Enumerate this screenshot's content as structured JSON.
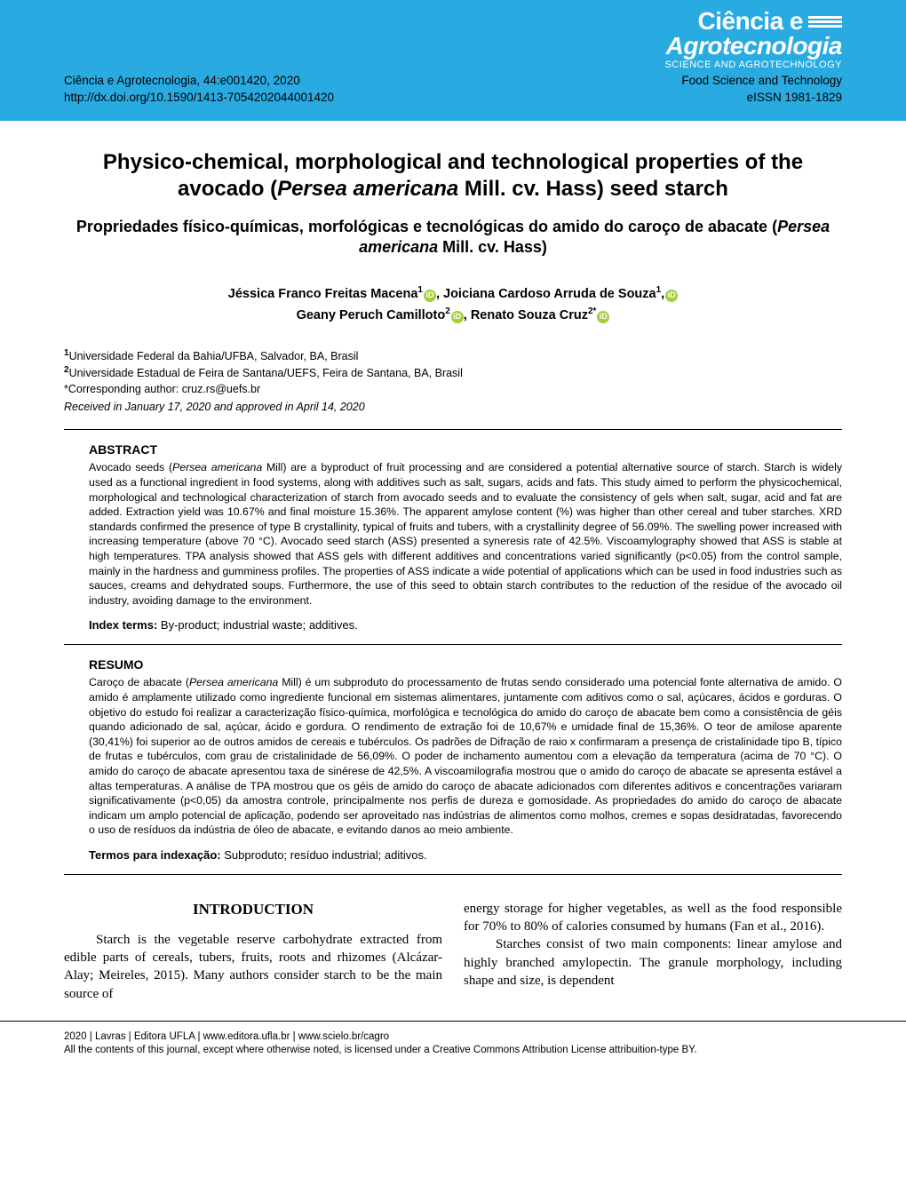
{
  "header": {
    "logo_line1": "Ciência e",
    "logo_line2": "Agrotecnologia",
    "logo_sub": "SCIENCE AND AGROTECHNOLOGY",
    "citation": "Ciência e Agrotecnologia, 44:e001420, 2020",
    "doi": "http://dx.doi.org/10.1590/1413-7054202044001420",
    "section": "Food Science and Technology",
    "eissn": "eISSN 1981-1829"
  },
  "title": {
    "pre": "Physico-chemical, morphological and technological properties of the avocado (",
    "italic": "Persea americana",
    "post": " Mill. cv. Hass) seed starch"
  },
  "subtitle": {
    "pre": "Propriedades físico-químicas, morfológicas e tecnológicas do amido do caroço de abacate (",
    "italic": "Persea americana",
    "post": " Mill. cv. Hass)"
  },
  "authors": {
    "a1_name": "Jéssica Franco Freitas Macena",
    "a1_sup": "1",
    "a2_name": "Joiciana Cardoso Arruda de Souza",
    "a2_sup": "1",
    "a3_name": "Geany Peruch Camilloto",
    "a3_sup": "2",
    "a4_name": "Renato Souza Cruz",
    "a4_sup": "2*"
  },
  "affiliations": {
    "aff1_sup": "1",
    "aff1": "Universidade Federal da Bahia/UFBA, Salvador, BA, Brasil",
    "aff2_sup": "2",
    "aff2": "Universidade Estadual de Feira de Santana/UEFS, Feira de Santana, BA, Brasil",
    "corr": "*Corresponding author: cruz.rs@uefs.br",
    "received": "Received in January 17, 2020 and approved in April 14, 2020"
  },
  "abstract_en": {
    "heading": "ABSTRACT",
    "pre": "Avocado seeds (",
    "italic": "Persea americana",
    "body": " Mill) are a byproduct of fruit processing and are considered a potential alternative source of starch. Starch is widely used as a functional ingredient in food systems, along with additives such as salt, sugars, acids and fats. This study aimed to perform the physicochemical, morphological and technological characterization of starch from avocado seeds and to evaluate the consistency of gels when salt, sugar, acid and fat are added. Extraction yield was 10.67% and final moisture 15.36%. The apparent amylose content (%) was higher than other cereal and tuber starches. XRD standards confirmed the presence of type B crystallinity, typical of fruits and tubers, with a crystallinity degree of 56.09%. The swelling power increased with increasing temperature (above 70 °C). Avocado seed starch (ASS) presented a syneresis rate of 42.5%. Viscoamylography showed that ASS is stable at high temperatures. TPA analysis showed that ASS gels with different additives and concentrations varied significantly (p<0.05) from the control sample, mainly in the hardness and gumminess profiles. The properties of ASS indicate a wide potential of applications which can be used in food industries such as sauces, creams and dehydrated soups. Furthermore, the use of this seed to obtain starch contributes to the reduction of the residue of the avocado oil industry, avoiding damage to the environment.",
    "index_label": "Index terms:",
    "index_terms": " By-product; industrial waste; additives."
  },
  "abstract_pt": {
    "heading": "RESUMO",
    "pre": "Caroço de abacate (",
    "italic": "Persea americana",
    "body": " Mill) é um subproduto do processamento de frutas sendo considerado uma potencial fonte alternativa de amido. O amido é amplamente utilizado como ingrediente funcional em sistemas alimentares, juntamente com aditivos como o sal, açúcares, ácidos e gorduras. O objetivo do estudo foi realizar a caracterização físico-química, morfológica e tecnológica do amido do caroço de abacate bem como a consistência de géis quando adicionado de sal, açúcar, ácido e gordura. O rendimento de extração foi de 10,67% e umidade final de 15,36%. O teor de amilose aparente (30,41%) foi superior ao de outros amidos de cereais e tubérculos. Os padrões de Difração de raio x confirmaram a presença de cristalinidade tipo B, típico de frutas e tubérculos, com grau de cristalinidade de 56,09%. O poder de inchamento aumentou com a elevação da temperatura (acima de 70 °C). O amido do caroço de abacate apresentou taxa de sinérese de 42,5%. A viscoamilografia mostrou que o amido do caroço de abacate se apresenta estável a altas temperaturas. A análise de TPA mostrou que os géis de amido do caroço de abacate adicionados com diferentes aditivos e concentrações variaram significativamente (p<0,05) da amostra controle, principalmente nos perfis de dureza e gomosidade. As propriedades do amido do caroço de abacate indicam um amplo potencial de aplicação, podendo ser aproveitado nas indústrias de alimentos como molhos, cremes e sopas desidratadas, favorecendo o uso de resíduos da indústria de óleo de abacate, e evitando danos ao meio ambiente.",
    "index_label": "Termos para indexação:",
    "index_terms": " Subproduto; resíduo industrial; aditivos."
  },
  "intro": {
    "heading": "INTRODUCTION",
    "col1": "Starch is the vegetable reserve carbohydrate extracted from edible parts of cereals, tubers, fruits, roots and rhizomes (Alcázar-Alay; Meireles, 2015). Many authors consider starch to be the main source of",
    "col2_p1": "energy storage for higher vegetables, as well as the food responsible for 70% to 80% of calories consumed by humans (Fan et al., 2016).",
    "col2_p2": "Starches consist of two main components: linear amylose and highly branched amylopectin. The granule morphology, including shape and size, is dependent"
  },
  "footer": {
    "line1": "2020 | Lavras | Editora UFLA | www.editora.ufla.br | www.scielo.br/cagro",
    "line2": "All the contents of this journal, except where otherwise noted, is licensed under a Creative Commons Attribution License attribuition-type BY."
  },
  "colors": {
    "header_bg": "#29abe2",
    "orcid": "#a6ce39"
  }
}
